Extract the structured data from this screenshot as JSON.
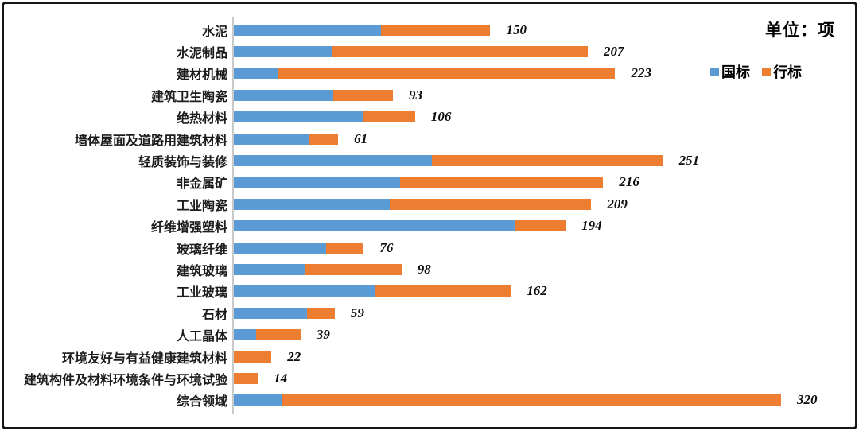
{
  "header": {
    "unit_label": "单位：项"
  },
  "legend": {
    "items": [
      {
        "label": "国标",
        "color": "#5B9BD5"
      },
      {
        "label": "行标",
        "color": "#ED7D31"
      }
    ]
  },
  "colors": {
    "guobiao_blue": "#5B9BD5",
    "hangbiao_orange": "#ED7D31",
    "axis_gray": "#c9c9c9",
    "frame_black": "#161616",
    "background": "#ffffff"
  },
  "chart_data": {
    "type": "bar",
    "orientation": "horizontal",
    "stacked": true,
    "title": "",
    "unit": "项",
    "xlabel": "",
    "ylabel": "",
    "xlim": [
      0,
      330
    ],
    "grid": false,
    "legend_position": "top-right",
    "value_labels": "total-outside-end",
    "categories": [
      "水泥",
      "水泥制品",
      "建材机械",
      "建筑卫生陶瓷",
      "绝热材料",
      "墙体屋面及道路用建筑材料",
      "轻质装饰与装修",
      "非金属矿",
      "工业陶瓷",
      "纤维增强塑料",
      "玻璃纤维",
      "建筑玻璃",
      "工业玻璃",
      "石材",
      "人工晶体",
      "环境友好与有益健康建筑材料",
      "建筑构件及材料环境条件与环境试验",
      "综合领域"
    ],
    "series": [
      {
        "name": "国标",
        "color": "#5B9BD5",
        "values": [
          86,
          57,
          26,
          58,
          76,
          44,
          116,
          97,
          91,
          164,
          54,
          42,
          83,
          43,
          13,
          0,
          0,
          28
        ]
      },
      {
        "name": "行标",
        "color": "#ED7D31",
        "values": [
          64,
          150,
          197,
          35,
          30,
          17,
          135,
          119,
          118,
          30,
          22,
          56,
          79,
          16,
          26,
          22,
          14,
          292
        ]
      }
    ],
    "totals": [
      150,
      207,
      223,
      93,
      106,
      61,
      251,
      216,
      209,
      194,
      76,
      98,
      162,
      59,
      39,
      22,
      14,
      320
    ]
  }
}
